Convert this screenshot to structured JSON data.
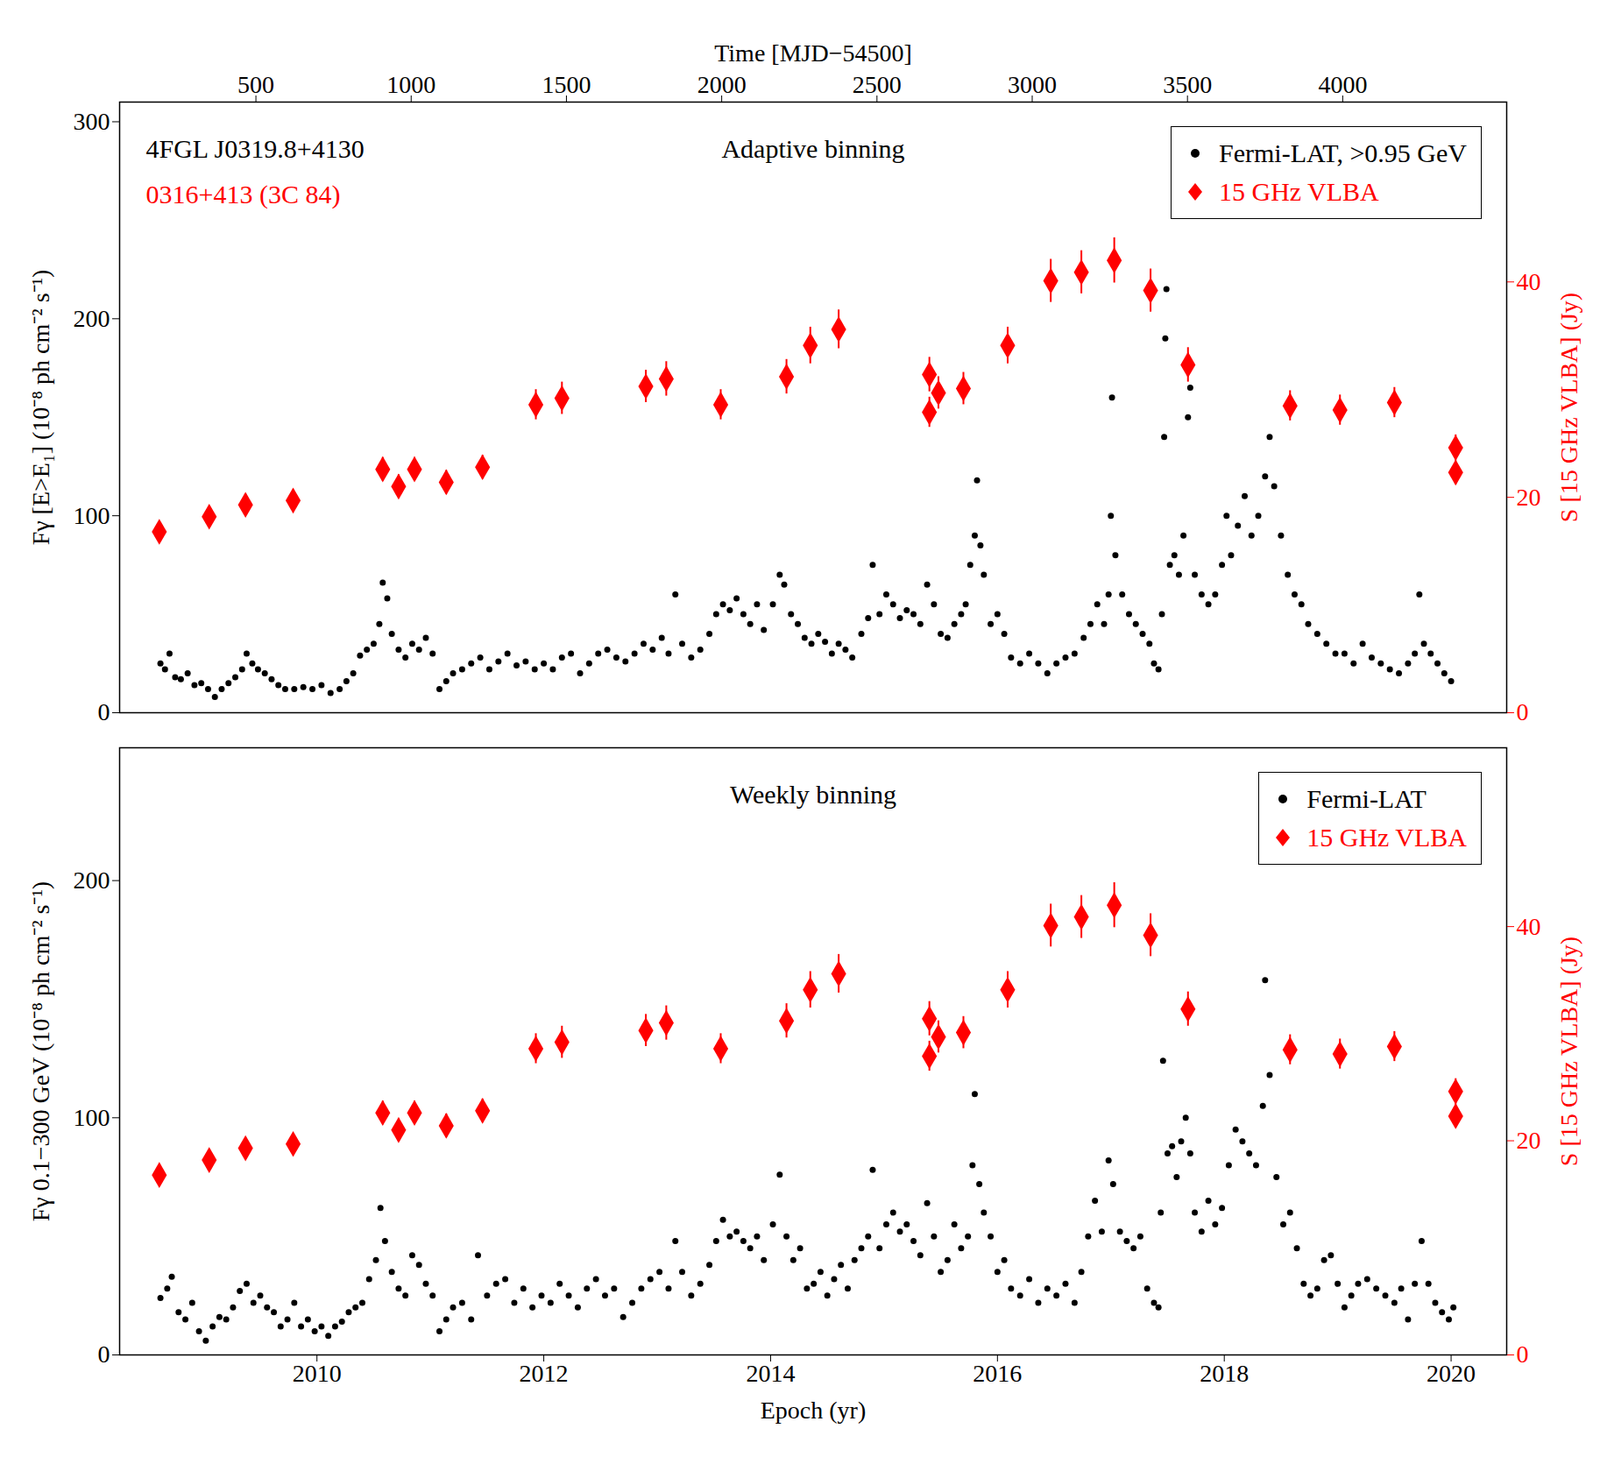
{
  "chart_data": [
    {
      "type": "scatter",
      "title": "Adaptive binning",
      "annotations": [
        {
          "text": "4FGL J0319.8+4130",
          "color": "#000000"
        },
        {
          "text": "0316+413 (3C 84)",
          "color": "#ff0000"
        }
      ],
      "x2label": "Time [MJD−54500]",
      "x2lim": [
        61,
        4528
      ],
      "x2ticks": [
        500,
        1000,
        1500,
        2000,
        2500,
        3000,
        3500,
        4000
      ],
      "xlim": [
        2008.26,
        2020.49
      ],
      "ylabel": "Fγ [E>E₁] (10⁻⁸ ph cm⁻² s⁻¹)",
      "ylim": [
        0,
        310
      ],
      "yticks": [
        0,
        100,
        200,
        300
      ],
      "y2label": "S [15 GHz VLBA] (Jy)",
      "y2lim": [
        0,
        56.7
      ],
      "y2ticks": [
        0,
        20,
        40
      ],
      "legend": "top-right",
      "series": [
        {
          "name": "Fermi-LAT, >0.95 GeV",
          "color": "#000000",
          "marker": "circle",
          "x": [
            2008.62,
            2008.66,
            2008.7,
            2008.75,
            2008.8,
            2008.86,
            2008.92,
            2008.98,
            2009.04,
            2009.1,
            2009.16,
            2009.22,
            2009.28,
            2009.34,
            2009.38,
            2009.43,
            2009.48,
            2009.54,
            2009.6,
            2009.66,
            2009.72,
            2009.8,
            2009.88,
            2009.96,
            2010.04,
            2010.12,
            2010.2,
            2010.26,
            2010.32,
            2010.38,
            2010.44,
            2010.5,
            2010.55,
            2010.58,
            2010.62,
            2010.66,
            2010.72,
            2010.78,
            2010.84,
            2010.9,
            2010.96,
            2011.02,
            2011.08,
            2011.14,
            2011.2,
            2011.28,
            2011.36,
            2011.44,
            2011.52,
            2011.6,
            2011.68,
            2011.76,
            2011.84,
            2011.92,
            2012.0,
            2012.08,
            2012.16,
            2012.24,
            2012.32,
            2012.4,
            2012.48,
            2012.56,
            2012.64,
            2012.72,
            2012.8,
            2012.88,
            2012.96,
            2013.04,
            2013.1,
            2013.16,
            2013.22,
            2013.3,
            2013.38,
            2013.46,
            2013.52,
            2013.58,
            2013.64,
            2013.7,
            2013.76,
            2013.82,
            2013.88,
            2013.94,
            2014.02,
            2014.08,
            2014.12,
            2014.18,
            2014.24,
            2014.3,
            2014.36,
            2014.42,
            2014.48,
            2014.54,
            2014.6,
            2014.66,
            2014.72,
            2014.8,
            2014.86,
            2014.9,
            2014.96,
            2015.02,
            2015.08,
            2015.14,
            2015.2,
            2015.26,
            2015.32,
            2015.38,
            2015.44,
            2015.5,
            2015.56,
            2015.62,
            2015.68,
            2015.72,
            2015.76,
            2015.8,
            2015.82,
            2015.85,
            2015.88,
            2015.94,
            2016.0,
            2016.06,
            2016.12,
            2016.2,
            2016.28,
            2016.36,
            2016.44,
            2016.52,
            2016.6,
            2016.68,
            2016.76,
            2016.82,
            2016.88,
            2016.94,
            2016.98,
            2017.0,
            2017.01,
            2017.04,
            2017.1,
            2017.16,
            2017.22,
            2017.28,
            2017.34,
            2017.38,
            2017.42,
            2017.45,
            2017.47,
            2017.48,
            2017.49,
            2017.52,
            2017.56,
            2017.6,
            2017.64,
            2017.68,
            2017.7,
            2017.74,
            2017.8,
            2017.86,
            2017.92,
            2017.98,
            2018.02,
            2018.06,
            2018.12,
            2018.18,
            2018.24,
            2018.3,
            2018.36,
            2018.4,
            2018.44,
            2018.5,
            2018.56,
            2018.62,
            2018.68,
            2018.74,
            2018.82,
            2018.9,
            2018.98,
            2019.06,
            2019.14,
            2019.22,
            2019.3,
            2019.38,
            2019.46,
            2019.54,
            2019.62,
            2019.68,
            2019.72,
            2019.76,
            2019.82,
            2019.88,
            2019.94,
            2020.0
          ],
          "values": [
            25,
            22,
            30,
            18,
            17,
            20,
            14,
            15,
            12,
            8,
            12,
            15,
            18,
            22,
            30,
            25,
            22,
            20,
            17,
            14,
            12,
            12,
            13,
            12,
            14,
            10,
            12,
            16,
            20,
            29,
            32,
            35,
            45,
            66,
            58,
            40,
            32,
            28,
            35,
            32,
            38,
            30,
            12,
            16,
            20,
            22,
            25,
            28,
            22,
            26,
            30,
            24,
            26,
            22,
            25,
            22,
            28,
            30,
            20,
            25,
            30,
            32,
            28,
            26,
            30,
            35,
            32,
            38,
            30,
            60,
            35,
            28,
            32,
            40,
            50,
            55,
            52,
            58,
            50,
            45,
            55,
            42,
            55,
            70,
            65,
            50,
            45,
            38,
            35,
            40,
            36,
            30,
            35,
            32,
            28,
            40,
            48,
            75,
            50,
            60,
            55,
            48,
            52,
            50,
            45,
            65,
            55,
            40,
            38,
            45,
            50,
            55,
            75,
            90,
            118,
            85,
            70,
            45,
            50,
            40,
            28,
            25,
            30,
            25,
            20,
            25,
            28,
            30,
            38,
            45,
            55,
            45,
            60,
            100,
            160,
            80,
            60,
            50,
            45,
            40,
            35,
            25,
            22,
            50,
            140,
            190,
            215,
            75,
            80,
            70,
            90,
            150,
            165,
            70,
            60,
            55,
            60,
            75,
            100,
            80,
            95,
            110,
            90,
            100,
            120,
            140,
            115,
            90,
            70,
            60,
            55,
            45,
            40,
            35,
            30,
            30,
            25,
            35,
            28,
            25,
            22,
            20,
            25,
            30,
            60,
            35,
            30,
            25,
            20,
            16
          ]
        },
        {
          "name": "15 GHz VLBA",
          "color": "#ff0000",
          "marker": "diamond",
          "axis": "y2",
          "x": [
            2008.61,
            2009.05,
            2009.37,
            2009.79,
            2010.58,
            2010.72,
            2010.86,
            2011.14,
            2011.46,
            2011.93,
            2012.16,
            2012.9,
            2013.08,
            2013.56,
            2014.14,
            2014.35,
            2014.6,
            2015.4,
            2015.4,
            2015.48,
            2015.7,
            2016.09,
            2016.47,
            2016.74,
            2017.03,
            2017.35,
            2017.68,
            2018.58,
            2019.02,
            2019.5,
            2020.04,
            2020.04
          ],
          "values": [
            16.8,
            18.2,
            19.3,
            19.7,
            22.6,
            21.0,
            22.6,
            21.4,
            22.8,
            28.6,
            29.2,
            30.3,
            31.0,
            28.6,
            31.2,
            34.1,
            35.6,
            27.9,
            31.4,
            29.7,
            30.1,
            34.1,
            40.1,
            40.9,
            42.0,
            39.2,
            32.3,
            28.5,
            28.1,
            28.8,
            24.6,
            22.3
          ],
          "errors": [
            0.9,
            0.9,
            1.0,
            1.0,
            1.1,
            1.1,
            1.1,
            1.1,
            1.1,
            1.4,
            1.5,
            1.5,
            1.6,
            1.4,
            1.6,
            1.7,
            1.8,
            1.4,
            1.6,
            1.5,
            1.5,
            1.7,
            2.0,
            2.0,
            2.1,
            2.0,
            1.6,
            1.4,
            1.4,
            1.4,
            1.2,
            1.1
          ]
        }
      ]
    },
    {
      "type": "scatter",
      "title": "Weekly binning",
      "xlabel": "Epoch (yr)",
      "xlim": [
        2008.26,
        2020.49
      ],
      "xticks": [
        2010,
        2012,
        2014,
        2016,
        2018,
        2020
      ],
      "ylabel": "Fγ 0.1−300 GeV (10⁻⁸ ph cm⁻² s⁻¹)",
      "ylim": [
        0,
        256
      ],
      "yticks": [
        0,
        100,
        200
      ],
      "y2label": "S [15 GHz VLBA] (Jy)",
      "y2lim": [
        0,
        56.7
      ],
      "y2ticks": [
        0,
        20,
        40
      ],
      "legend": "top-right",
      "series": [
        {
          "name": "Fermi-LAT",
          "color": "#000000",
          "marker": "circle",
          "x": [
            2008.62,
            2008.68,
            2008.72,
            2008.78,
            2008.84,
            2008.9,
            2008.96,
            2009.02,
            2009.08,
            2009.14,
            2009.2,
            2009.26,
            2009.32,
            2009.38,
            2009.44,
            2009.5,
            2009.56,
            2009.62,
            2009.68,
            2009.74,
            2009.8,
            2009.86,
            2009.92,
            2009.98,
            2010.04,
            2010.1,
            2010.16,
            2010.22,
            2010.28,
            2010.34,
            2010.4,
            2010.46,
            2010.52,
            2010.56,
            2010.6,
            2010.66,
            2010.72,
            2010.78,
            2010.84,
            2010.9,
            2010.96,
            2011.02,
            2011.08,
            2011.14,
            2011.2,
            2011.28,
            2011.36,
            2011.42,
            2011.5,
            2011.58,
            2011.66,
            2011.74,
            2011.82,
            2011.9,
            2011.98,
            2012.06,
            2012.14,
            2012.22,
            2012.3,
            2012.38,
            2012.46,
            2012.54,
            2012.62,
            2012.7,
            2012.78,
            2012.86,
            2012.94,
            2013.02,
            2013.1,
            2013.16,
            2013.22,
            2013.3,
            2013.38,
            2013.46,
            2013.52,
            2013.58,
            2013.64,
            2013.7,
            2013.76,
            2013.82,
            2013.88,
            2013.94,
            2014.02,
            2014.08,
            2014.14,
            2014.2,
            2014.26,
            2014.32,
            2014.38,
            2014.44,
            2014.5,
            2014.56,
            2014.62,
            2014.68,
            2014.74,
            2014.8,
            2014.86,
            2014.9,
            2014.96,
            2015.02,
            2015.08,
            2015.14,
            2015.2,
            2015.26,
            2015.32,
            2015.38,
            2015.44,
            2015.5,
            2015.56,
            2015.62,
            2015.68,
            2015.74,
            2015.78,
            2015.8,
            2015.84,
            2015.88,
            2015.94,
            2016.0,
            2016.06,
            2016.12,
            2016.2,
            2016.28,
            2016.36,
            2016.44,
            2016.52,
            2016.6,
            2016.68,
            2016.74,
            2016.8,
            2016.86,
            2016.92,
            2016.98,
            2017.02,
            2017.08,
            2017.14,
            2017.2,
            2017.26,
            2017.32,
            2017.38,
            2017.42,
            2017.44,
            2017.46,
            2017.5,
            2017.54,
            2017.58,
            2017.62,
            2017.66,
            2017.7,
            2017.74,
            2017.8,
            2017.86,
            2017.92,
            2017.98,
            2018.04,
            2018.1,
            2018.16,
            2018.22,
            2018.28,
            2018.34,
            2018.36,
            2018.4,
            2018.46,
            2018.52,
            2018.58,
            2018.64,
            2018.7,
            2018.76,
            2018.82,
            2018.88,
            2018.94,
            2019.0,
            2019.06,
            2019.12,
            2019.18,
            2019.26,
            2019.34,
            2019.42,
            2019.5,
            2019.56,
            2019.62,
            2019.68,
            2019.74,
            2019.8,
            2019.86,
            2019.92,
            2019.98,
            2020.02
          ],
          "values": [
            24,
            28,
            33,
            18,
            15,
            22,
            10,
            6,
            12,
            16,
            15,
            20,
            27,
            30,
            22,
            25,
            20,
            18,
            12,
            15,
            22,
            12,
            15,
            10,
            12,
            8,
            12,
            14,
            18,
            20,
            22,
            32,
            40,
            62,
            48,
            35,
            28,
            25,
            42,
            38,
            30,
            25,
            10,
            15,
            20,
            22,
            15,
            42,
            25,
            30,
            32,
            22,
            28,
            20,
            25,
            22,
            30,
            25,
            20,
            28,
            32,
            25,
            28,
            16,
            22,
            28,
            32,
            35,
            28,
            48,
            35,
            25,
            30,
            38,
            48,
            57,
            50,
            52,
            48,
            45,
            50,
            40,
            55,
            76,
            50,
            40,
            45,
            28,
            30,
            35,
            25,
            32,
            38,
            28,
            40,
            45,
            50,
            78,
            45,
            55,
            60,
            52,
            55,
            48,
            42,
            64,
            50,
            35,
            40,
            55,
            45,
            50,
            80,
            110,
            72,
            60,
            50,
            35,
            40,
            28,
            25,
            32,
            22,
            28,
            25,
            30,
            22,
            35,
            50,
            65,
            52,
            82,
            72,
            52,
            48,
            45,
            50,
            28,
            22,
            20,
            60,
            124,
            85,
            88,
            75,
            90,
            100,
            85,
            60,
            52,
            65,
            55,
            62,
            80,
            95,
            90,
            85,
            80,
            105,
            158,
            118,
            75,
            55,
            60,
            45,
            30,
            25,
            28,
            40,
            42,
            30,
            20,
            25,
            30,
            32,
            28,
            25,
            22,
            28,
            15,
            30,
            48,
            30,
            22,
            18,
            15,
            20
          ]
        },
        {
          "name": "15 GHz VLBA",
          "color": "#ff0000",
          "marker": "diamond",
          "axis": "y2",
          "x": [
            2008.61,
            2009.05,
            2009.37,
            2009.79,
            2010.58,
            2010.72,
            2010.86,
            2011.14,
            2011.46,
            2011.93,
            2012.16,
            2012.9,
            2013.08,
            2013.56,
            2014.14,
            2014.35,
            2014.6,
            2015.4,
            2015.4,
            2015.48,
            2015.7,
            2016.09,
            2016.47,
            2016.74,
            2017.03,
            2017.35,
            2017.68,
            2018.58,
            2019.02,
            2019.5,
            2020.04,
            2020.04
          ],
          "values": [
            16.8,
            18.2,
            19.3,
            19.7,
            22.6,
            21.0,
            22.6,
            21.4,
            22.8,
            28.6,
            29.2,
            30.3,
            31.0,
            28.6,
            31.2,
            34.1,
            35.6,
            27.9,
            31.4,
            29.7,
            30.1,
            34.1,
            40.1,
            40.9,
            42.0,
            39.2,
            32.3,
            28.5,
            28.1,
            28.8,
            24.6,
            22.3
          ],
          "errors": [
            0.9,
            0.9,
            1.0,
            1.0,
            1.1,
            1.1,
            1.1,
            1.1,
            1.1,
            1.4,
            1.5,
            1.5,
            1.6,
            1.4,
            1.6,
            1.7,
            1.8,
            1.4,
            1.6,
            1.5,
            1.5,
            1.7,
            2.0,
            2.0,
            2.1,
            2.0,
            1.6,
            1.4,
            1.4,
            1.4,
            1.2,
            1.1
          ]
        }
      ]
    }
  ]
}
